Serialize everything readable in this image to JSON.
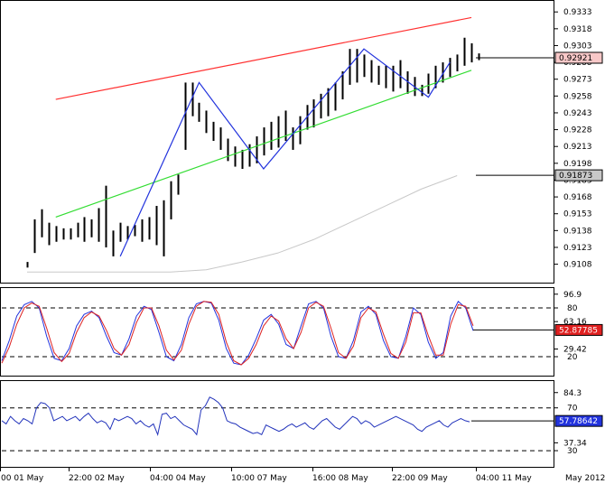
{
  "colors": {
    "background": "#ffffff",
    "bars": "#000000",
    "resistance_line": "#ff3030",
    "support_line": "#33dd33",
    "zigzag": "#2233dd",
    "moving_average": "#c8c8c8",
    "stoch_main": "#2233dd",
    "stoch_signal": "#dd2222",
    "rsi": "#2233bb",
    "price_label_bg": "#f8c8c8",
    "ma_label_bg": "#c8c8c8",
    "stoch_label_bg": "#e02020",
    "rsi_label_bg": "#2233dd"
  },
  "chart_data": [
    {
      "type": "line",
      "panel": "price",
      "ylim": [
        0.9098,
        0.9338
      ],
      "y_ticks": [
        "0.9333",
        "0.9318",
        "0.9303",
        "0.9288",
        "0.9273",
        "0.9258",
        "0.9243",
        "0.9228",
        "0.9213",
        "0.9198",
        "0.9183",
        "0.9168",
        "0.9153",
        "0.9138",
        "0.9123",
        "0.9108"
      ],
      "current_price_label": "0.92921",
      "current_price": 0.92921,
      "ma_label": "0.91873",
      "ma_value": 0.91873,
      "bar_count": 64,
      "bars": [
        [
          0.9105,
          0.911
        ],
        [
          0.9118,
          0.9148
        ],
        [
          0.9132,
          0.9157
        ],
        [
          0.9125,
          0.9145
        ],
        [
          0.9128,
          0.9142
        ],
        [
          0.913,
          0.914
        ],
        [
          0.913,
          0.914
        ],
        [
          0.9132,
          0.9145
        ],
        [
          0.9128,
          0.915
        ],
        [
          0.9132,
          0.9148
        ],
        [
          0.9128,
          0.9158
        ],
        [
          0.9123,
          0.9178
        ],
        [
          0.9115,
          0.9138
        ],
        [
          0.9128,
          0.9145
        ],
        [
          0.913,
          0.9142
        ],
        [
          0.9133,
          0.9143
        ],
        [
          0.9128,
          0.9148
        ],
        [
          0.913,
          0.915
        ],
        [
          0.9125,
          0.916
        ],
        [
          0.9115,
          0.9165
        ],
        [
          0.9148,
          0.9182
        ],
        [
          0.917,
          0.9188
        ],
        [
          0.921,
          0.927
        ],
        [
          0.924,
          0.927
        ],
        [
          0.9235,
          0.9252
        ],
        [
          0.9225,
          0.9245
        ],
        [
          0.9218,
          0.9235
        ],
        [
          0.921,
          0.923
        ],
        [
          0.92,
          0.922
        ],
        [
          0.9195,
          0.9213
        ],
        [
          0.9193,
          0.921
        ],
        [
          0.9195,
          0.9215
        ],
        [
          0.9198,
          0.9222
        ],
        [
          0.9205,
          0.923
        ],
        [
          0.921,
          0.9235
        ],
        [
          0.9212,
          0.924
        ],
        [
          0.9218,
          0.9245
        ],
        [
          0.921,
          0.923
        ],
        [
          0.9215,
          0.924
        ],
        [
          0.9228,
          0.925
        ],
        [
          0.923,
          0.9255
        ],
        [
          0.9238,
          0.926
        ],
        [
          0.924,
          0.9265
        ],
        [
          0.9245,
          0.927
        ],
        [
          0.9255,
          0.928
        ],
        [
          0.9268,
          0.93
        ],
        [
          0.927,
          0.93
        ],
        [
          0.9275,
          0.9295
        ],
        [
          0.927,
          0.929
        ],
        [
          0.9268,
          0.9285
        ],
        [
          0.9265,
          0.9285
        ],
        [
          0.9262,
          0.9285
        ],
        [
          0.9265,
          0.929
        ],
        [
          0.926,
          0.928
        ],
        [
          0.9258,
          0.9275
        ],
        [
          0.9258,
          0.9268
        ],
        [
          0.926,
          0.9278
        ],
        [
          0.9265,
          0.9285
        ],
        [
          0.927,
          0.9288
        ],
        [
          0.9275,
          0.9292
        ],
        [
          0.928,
          0.9295
        ],
        [
          0.9285,
          0.931
        ],
        [
          0.9288,
          0.9305
        ],
        [
          0.929,
          0.9296
        ]
      ],
      "resistance_line": [
        [
          4,
          0.9255
        ],
        [
          62,
          0.9328
        ]
      ],
      "support_line": [
        [
          4,
          0.915
        ],
        [
          62,
          0.9281
        ]
      ],
      "zigzag": [
        [
          13,
          0.9115
        ],
        [
          24,
          0.927
        ],
        [
          33,
          0.9193
        ],
        [
          47,
          0.93
        ],
        [
          56,
          0.9257
        ],
        [
          59,
          0.9288
        ]
      ],
      "moving_average": [
        [
          0,
          0.9101
        ],
        [
          20,
          0.9101
        ],
        [
          25,
          0.9103
        ],
        [
          30,
          0.911
        ],
        [
          35,
          0.9118
        ],
        [
          40,
          0.913
        ],
        [
          45,
          0.9145
        ],
        [
          50,
          0.916
        ],
        [
          55,
          0.9175
        ],
        [
          60,
          0.9187
        ]
      ]
    },
    {
      "type": "line",
      "panel": "stochastic",
      "ylim": [
        0,
        100
      ],
      "y_ticks": [
        "96.9",
        "80",
        "63.16",
        "29.42",
        "20"
      ],
      "levels": [
        80,
        20
      ],
      "current_value_label": "52.87785",
      "current_value": 52.87785,
      "series": [
        {
          "values": [
            15,
            40,
            70,
            84,
            88,
            80,
            45,
            18,
            15,
            30,
            58,
            72,
            76,
            68,
            45,
            25,
            22,
            42,
            70,
            82,
            78,
            50,
            20,
            15,
            35,
            68,
            85,
            88,
            86,
            65,
            30,
            12,
            10,
            22,
            42,
            65,
            72,
            60,
            35,
            30,
            58,
            85,
            88,
            80,
            45,
            20,
            18,
            40,
            75,
            82,
            72,
            40,
            20,
            18,
            45,
            80,
            72,
            38,
            18,
            25,
            70,
            88,
            80,
            52
          ]
        },
        {
          "values": [
            12,
            32,
            60,
            80,
            86,
            82,
            55,
            25,
            14,
            24,
            50,
            68,
            75,
            70,
            52,
            30,
            22,
            35,
            62,
            80,
            80,
            58,
            28,
            16,
            28,
            60,
            82,
            88,
            87,
            72,
            38,
            15,
            10,
            18,
            35,
            58,
            70,
            64,
            42,
            30,
            50,
            80,
            87,
            82,
            55,
            25,
            18,
            33,
            68,
            80,
            75,
            48,
            24,
            18,
            38,
            74,
            74,
            46,
            22,
            22,
            60,
            84,
            82,
            58
          ]
        }
      ]
    },
    {
      "type": "line",
      "panel": "rsi",
      "ylim": [
        25,
        90
      ],
      "y_ticks": [
        "84.3",
        "70",
        "37.34",
        "30"
      ],
      "levels": [
        70,
        30
      ],
      "current_value_label": "57.78642",
      "current_value": 57.78642,
      "values": [
        58,
        55,
        62,
        58,
        55,
        60,
        58,
        55,
        70,
        75,
        74,
        70,
        58,
        60,
        62,
        58,
        60,
        62,
        58,
        62,
        65,
        60,
        56,
        58,
        56,
        50,
        60,
        58,
        60,
        62,
        60,
        55,
        58,
        54,
        52,
        55,
        45,
        64,
        65,
        60,
        62,
        58,
        54,
        52,
        50,
        45,
        68,
        72,
        80,
        78,
        75,
        70,
        58,
        56,
        55,
        52,
        50,
        48,
        46,
        47,
        45,
        54,
        52,
        50,
        48,
        50,
        53,
        55,
        52,
        54,
        56,
        52,
        50,
        54,
        58,
        60,
        56,
        52,
        50,
        54,
        58,
        62,
        60,
        55,
        58,
        56,
        52,
        54,
        56,
        58,
        60,
        62,
        60,
        58,
        56,
        54,
        50,
        48,
        52,
        54,
        56,
        58,
        54,
        52,
        56,
        58,
        60,
        58,
        57
      ]
    }
  ],
  "x_axis": {
    "labels": [
      "00 01 May",
      "22:00 02 May",
      "04:00 04 May",
      "10:00 07 May",
      "16:00 08 May",
      "22:00 09 May",
      "04:00 11 May",
      "May 2012"
    ]
  }
}
